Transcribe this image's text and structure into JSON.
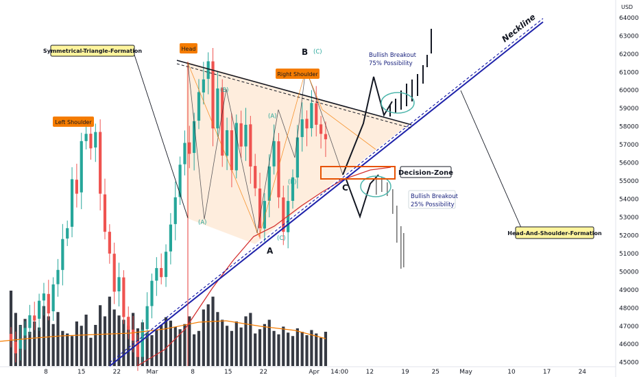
{
  "currency": "USD",
  "chart_data": {
    "type": "candlestick",
    "y_axis": {
      "min": 44800,
      "max": 64600,
      "ticks": [
        45000,
        46000,
        47000,
        48000,
        49000,
        50000,
        51000,
        52000,
        53000,
        54000,
        55000,
        56000,
        57000,
        58000,
        59000,
        60000,
        61000,
        62000,
        63000,
        64000
      ],
      "tick_labels": [
        "45000.0",
        "46000.0",
        "47000.0",
        "48000.0",
        "49000.0",
        "50000.0",
        "51000.0",
        "52000.0",
        "53000.0",
        "54000.0",
        "55000.0",
        "56000.0",
        "57000.0",
        "58000.0",
        "59000.0",
        "60000.0",
        "61000.0",
        "62000.0",
        "63000.0",
        "64000.0"
      ]
    },
    "x_axis": {
      "labels": [
        {
          "text": "8",
          "day": 8
        },
        {
          "text": "15",
          "day": 15
        },
        {
          "text": "22",
          "day": 22
        },
        {
          "text": "Mar",
          "day": 29
        },
        {
          "text": "8",
          "day": 37
        },
        {
          "text": "15",
          "day": 44
        },
        {
          "text": "22",
          "day": 51
        },
        {
          "text": "Apr",
          "day": 61
        },
        {
          "text": "14:00",
          "day": 66
        },
        {
          "text": "12",
          "day": 72
        },
        {
          "text": "19",
          "day": 79
        },
        {
          "text": "25",
          "day": 85
        },
        {
          "text": "May",
          "day": 91
        },
        {
          "text": "10",
          "day": 100
        },
        {
          "text": "17",
          "day": 107
        },
        {
          "text": "24",
          "day": 114
        }
      ]
    },
    "closes": [
      46200,
      45500,
      46300,
      46900,
      47600,
      47300,
      48400,
      48800,
      47700,
      49300,
      50100,
      51800,
      52400,
      55100,
      54300,
      57200,
      57600,
      56800,
      57700,
      54300,
      52200,
      51000,
      48900,
      49700,
      47500,
      46800,
      46200,
      45300,
      46800,
      48100,
      49500,
      50200,
      49700,
      51100,
      52600,
      54100,
      55900,
      57100,
      56500,
      58300,
      59900,
      60600,
      61600,
      57900,
      60100,
      56400,
      57800,
      55600,
      58200,
      56900,
      58100,
      55800,
      54600,
      52400,
      53900,
      55800,
      57200,
      54100,
      52200,
      53900,
      55200,
      57400,
      58400,
      57900,
      59300,
      58100,
      57600,
      57300
    ],
    "candle_delta_pct": [
      -0.8,
      -1.4,
      1.2,
      0.9,
      1.5,
      -0.6,
      2.1,
      0.8,
      -2.2,
      3.1,
      1.6,
      3.4,
      1.1,
      5.0,
      -1.4,
      5.2,
      0.7,
      -1.4,
      1.5,
      -5.9,
      -3.8,
      -2.3,
      -4.1,
      1.6,
      -4.4,
      -1.5,
      -1.3,
      -1.9,
      3.3,
      2.7,
      2.9,
      1.4,
      -1.0,
      2.8,
      2.9,
      2.8,
      3.3,
      2.1,
      -1.1,
      3.1,
      2.7,
      1.2,
      1.6,
      -6.0,
      3.8,
      -6.2,
      2.5,
      -3.8,
      4.7,
      -2.2,
      2.1,
      -4.0,
      -2.2,
      -4.0,
      2.9,
      3.5,
      2.5,
      -5.4,
      -3.5,
      3.3,
      2.4,
      4.0,
      1.7,
      -0.9,
      2.4,
      -2.0,
      -0.9,
      -0.5
    ],
    "volumes_pct": [
      88,
      62,
      48,
      55,
      40,
      52,
      45,
      70,
      58,
      49,
      63,
      41,
      38,
      35,
      52,
      47,
      60,
      33,
      48,
      71,
      58,
      81,
      66,
      59,
      54,
      47,
      62,
      44,
      51,
      39,
      36,
      42,
      48,
      57,
      53,
      46,
      43,
      49,
      58,
      37,
      41,
      66,
      72,
      81,
      63,
      54,
      47,
      41,
      52,
      45,
      58,
      62,
      38,
      43,
      49,
      54,
      41,
      37,
      46,
      39,
      35,
      44,
      40,
      36,
      42,
      38,
      33,
      40
    ],
    "annotations": {
      "triangle": "Symmetrical-Triangle-Formation",
      "head": "Head",
      "left_shoulder": "Left Shoulder",
      "right_shoulder": "Right Shoulder",
      "neckline": "Neckline",
      "bull75_line1": "Bullish Breakout",
      "bull75_line2": "75% Possibility",
      "bull25_line1": "Bullish Breakout",
      "bull25_line2": "25% Possibility",
      "decision": "Decision-Zone",
      "hs": "Head-And-Shoulder-Formation",
      "waveA": "A",
      "waveB": "B",
      "waveC": "C",
      "wave_a": "(A)",
      "wave_b1": "(B)",
      "wave_b2": "(B)",
      "wave_c1": "(C)",
      "wave_c2": "(C)",
      "wave_a2": "(A)"
    },
    "colors": {
      "up": "#26a69a",
      "down": "#ef5350",
      "volume": "#131722",
      "neckline": "#1e22aa",
      "triangle_fill": "#fde6cf",
      "label_orange": "#f57c00",
      "label_yellow": "#fff59d",
      "ellipse": "#4db6ac"
    }
  }
}
